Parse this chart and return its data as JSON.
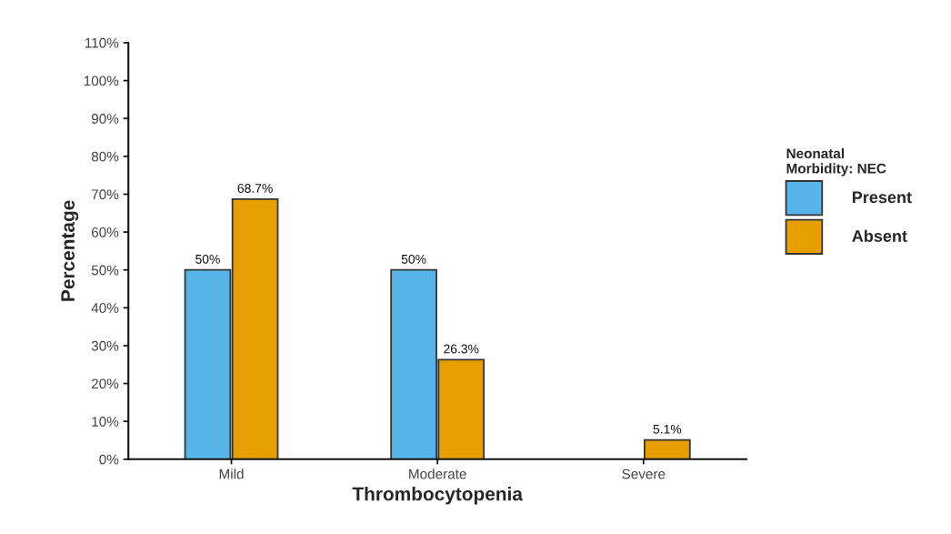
{
  "chart_data": {
    "type": "bar",
    "xlabel": "Thrombocytopenia",
    "ylabel": "Percentage",
    "legend_title": "Neonatal\nMorbidity: NEC",
    "legend": "right",
    "grid": false,
    "categories": [
      "Mild",
      "Moderate",
      "Severe"
    ],
    "series": [
      {
        "name": "Present",
        "color": "#56b4e9",
        "values": [
          50,
          50,
          null
        ],
        "value_labels": [
          "50%",
          "50%",
          null
        ]
      },
      {
        "name": "Absent",
        "color": "#e69f00",
        "values": [
          68.7,
          26.3,
          5.1
        ],
        "value_labels": [
          "68.7%",
          "26.3%",
          "5.1%"
        ]
      }
    ],
    "ylim": [
      0,
      110
    ],
    "yticks": [
      {
        "value": 0,
        "label": "0%"
      },
      {
        "value": 10,
        "label": "10%"
      },
      {
        "value": 20,
        "label": "20%"
      },
      {
        "value": 30,
        "label": "30%"
      },
      {
        "value": 40,
        "label": "40%"
      },
      {
        "value": 50,
        "label": "50%"
      },
      {
        "value": 60,
        "label": "60%"
      },
      {
        "value": 70,
        "label": "70%"
      },
      {
        "value": 80,
        "label": "80%"
      },
      {
        "value": 90,
        "label": "90%"
      },
      {
        "value": 100,
        "label": "100%"
      },
      {
        "value": 110,
        "label": "110%"
      }
    ]
  }
}
